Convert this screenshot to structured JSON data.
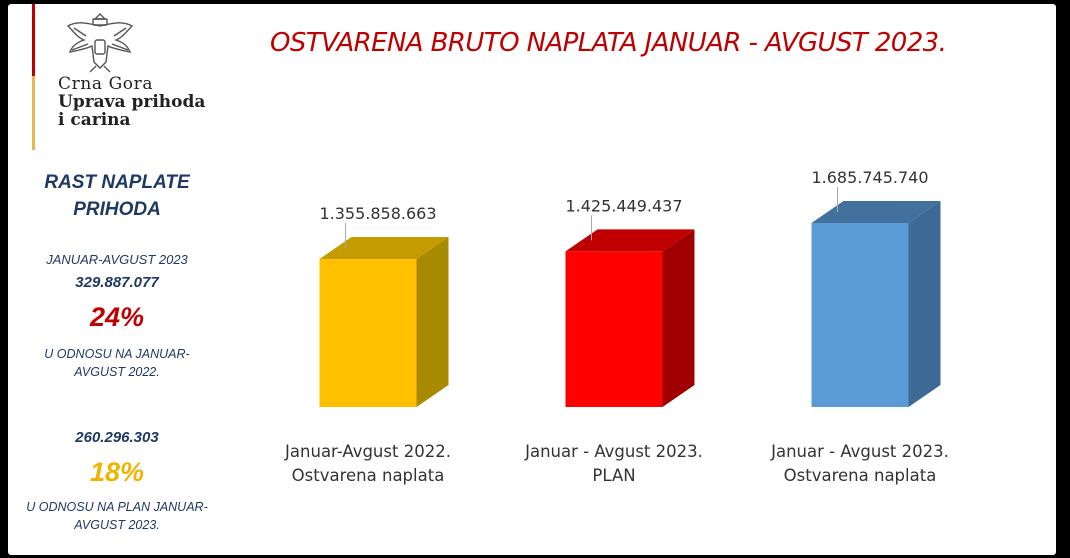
{
  "logo": {
    "line1": "Crna Gora",
    "line2": "Uprava prihoda",
    "line3": "i carina",
    "emblem_icon": "montenegro-coat-of-arms-icon"
  },
  "side": {
    "heading": "RAST NAPLATE PRIHODA",
    "period": "JANUAR-AVGUST 2023",
    "value_1": "329.887.077",
    "percent_1": "24%",
    "note_1": "U ODNOSU NA JANUAR-AVGUST 2022.",
    "value_2": "260.296.303",
    "percent_2": "18%",
    "note_2": "U ODNOSU NA PLAN JANUAR-AVGUST 2023."
  },
  "colors": {
    "title": "#c00000",
    "side_text": "#1f3864",
    "accent_red": "#c00000",
    "accent_gold": "#e8b84a"
  },
  "chart_data": {
    "type": "bar",
    "title": "OSTVARENA BRUTO NAPLATA JANUAR - AVGUST 2023.",
    "categories": [
      [
        "Januar-Avgust 2022.",
        "Ostvarena naplata"
      ],
      [
        "Januar - Avgust 2023.",
        "PLAN"
      ],
      [
        "Januar - Avgust 2023.",
        "Ostvarena naplata"
      ]
    ],
    "values": [
      1355858663,
      1425449437,
      1685745740
    ],
    "value_labels": [
      "1.355.858.663",
      "1.425.449.437",
      "1.685.745.740"
    ],
    "bar_colors": [
      {
        "front": "#ffc000",
        "side": "#a88a00",
        "top": "#c49b00"
      },
      {
        "front": "#ff0000",
        "side": "#a00000",
        "top": "#c00000"
      },
      {
        "front": "#5b9bd5",
        "side": "#3d6a95",
        "top": "#41719c"
      }
    ],
    "style": "3d-column",
    "grid": false,
    "legend": "none"
  }
}
